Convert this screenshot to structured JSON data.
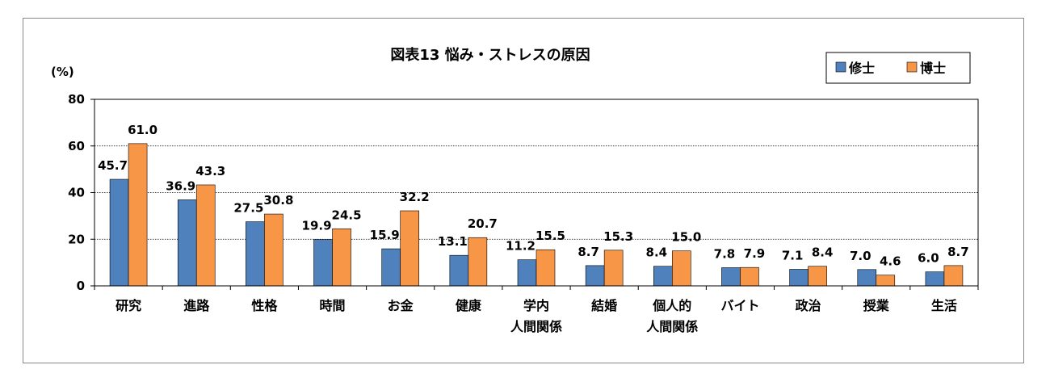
{
  "chart_data": {
    "type": "bar",
    "title": "図表13  悩み・ストレスの原因",
    "unit_label": "(%)",
    "categories": [
      [
        "研究"
      ],
      [
        "進路"
      ],
      [
        "性格"
      ],
      [
        "時間"
      ],
      [
        "お金"
      ],
      [
        "健康"
      ],
      [
        "学内",
        "人間関係"
      ],
      [
        "結婚"
      ],
      [
        "個人的",
        "人間関係"
      ],
      [
        "バイト"
      ],
      [
        "政治"
      ],
      [
        "授業"
      ],
      [
        "生活"
      ]
    ],
    "series": [
      {
        "name": "修士",
        "color": "#4F81BD",
        "values": [
          45.7,
          36.9,
          27.5,
          19.9,
          15.9,
          13.1,
          11.2,
          8.7,
          8.4,
          7.8,
          7.1,
          7.0,
          6.0
        ]
      },
      {
        "name": "博士",
        "color": "#F79646",
        "values": [
          61.0,
          43.3,
          30.8,
          24.5,
          32.2,
          20.7,
          15.5,
          15.3,
          15.0,
          7.9,
          8.4,
          4.6,
          8.7
        ]
      }
    ],
    "ylim": [
      0,
      80
    ],
    "yticks": [
      0,
      20,
      40,
      60,
      80
    ],
    "grid": true,
    "legend": "top-right"
  }
}
